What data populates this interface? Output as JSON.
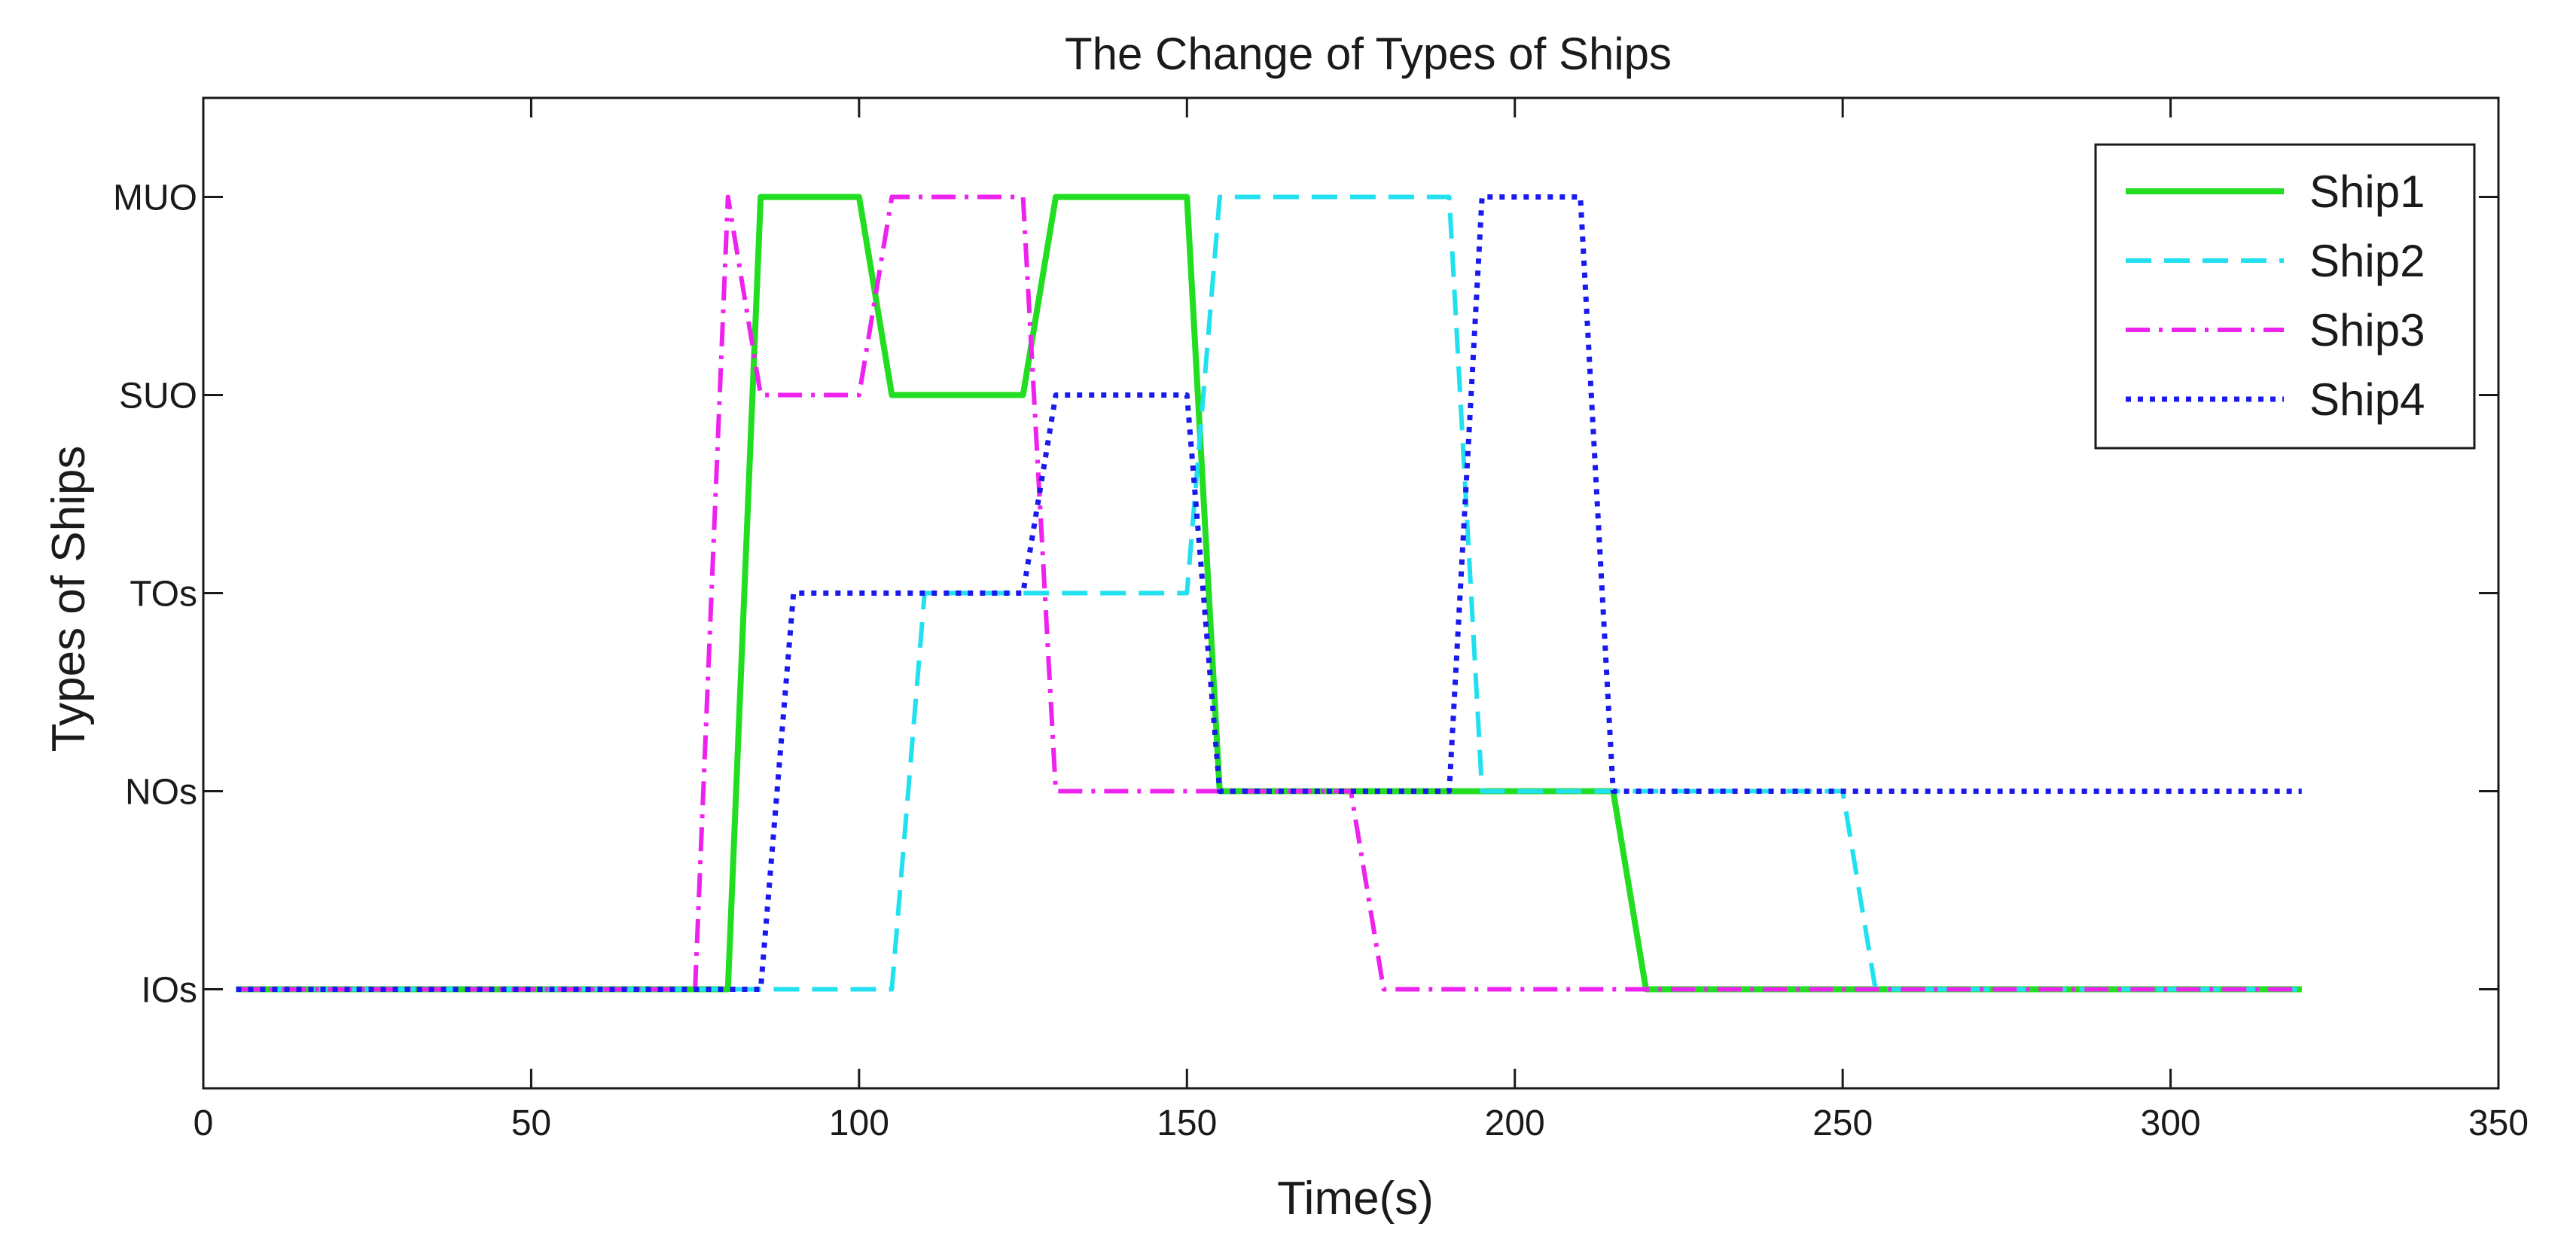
{
  "chart_data": {
    "type": "line",
    "title": "The Change of Types of Ships",
    "xlabel": "Time(s)",
    "ylabel": "Types of Ships",
    "xlim": [
      0,
      350
    ],
    "xticks": [
      0,
      50,
      100,
      150,
      200,
      250,
      300,
      350
    ],
    "categories_y": [
      "IOs",
      "NOs",
      "TOs",
      "SUO",
      "MUO"
    ],
    "ylim": [
      -0.5,
      4.5
    ],
    "grid": false,
    "legend": "top-right",
    "series": [
      {
        "name": "Ship1",
        "color": "#22dd22",
        "style": "solid",
        "points": [
          [
            5,
            0
          ],
          [
            80,
            0
          ],
          [
            85,
            4
          ],
          [
            100,
            4
          ],
          [
            105,
            3
          ],
          [
            125,
            3
          ],
          [
            130,
            4
          ],
          [
            150,
            4
          ],
          [
            155,
            1
          ],
          [
            215,
            1
          ],
          [
            220,
            0
          ],
          [
            320,
            0
          ]
        ]
      },
      {
        "name": "Ship2",
        "color": "#22e0f0",
        "style": "dashed",
        "points": [
          [
            5,
            0
          ],
          [
            105,
            0
          ],
          [
            110,
            2
          ],
          [
            150,
            2
          ],
          [
            155,
            4
          ],
          [
            190,
            4
          ],
          [
            195,
            1
          ],
          [
            250,
            1
          ],
          [
            255,
            0
          ],
          [
            320,
            0
          ]
        ]
      },
      {
        "name": "Ship3",
        "color": "#ee22ee",
        "style": "dashdot",
        "points": [
          [
            5,
            0
          ],
          [
            75,
            0
          ],
          [
            80,
            4
          ],
          [
            85,
            3
          ],
          [
            100,
            3
          ],
          [
            105,
            4
          ],
          [
            125,
            4
          ],
          [
            130,
            1
          ],
          [
            175,
            1
          ],
          [
            180,
            0
          ],
          [
            320,
            0
          ]
        ]
      },
      {
        "name": "Ship4",
        "color": "#1a1aee",
        "style": "dotted",
        "points": [
          [
            5,
            0
          ],
          [
            85,
            0
          ],
          [
            90,
            2
          ],
          [
            125,
            2
          ],
          [
            130,
            3
          ],
          [
            150,
            3
          ],
          [
            155,
            1
          ],
          [
            190,
            1
          ],
          [
            195,
            4
          ],
          [
            210,
            4
          ],
          [
            215,
            1
          ],
          [
            320,
            1
          ]
        ]
      }
    ]
  }
}
